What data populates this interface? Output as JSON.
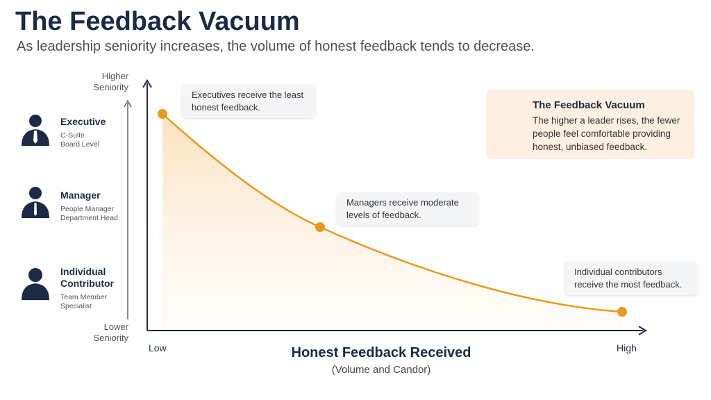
{
  "header": {
    "title": "The Feedback Vacuum",
    "subtitle": "As leadership seniority increases, the volume of honest feedback tends to decrease."
  },
  "y_axis": {
    "top_label": [
      "Higher",
      "Seniority"
    ],
    "bottom_label": [
      "Lower",
      "Seniority"
    ]
  },
  "levels": [
    {
      "title": "Executive",
      "details": [
        "C-Suite",
        "Board Level"
      ]
    },
    {
      "title": "Manager",
      "details": [
        "People Manager",
        "Department Head"
      ]
    },
    {
      "title": "Individual Contributor",
      "details": [
        "Team Member",
        "Specialist"
      ]
    }
  ],
  "x_axis": {
    "low": "Low",
    "high": "High",
    "title": "Honest Feedback Received",
    "subtitle": "(Volume and Candor)"
  },
  "callouts": [
    {
      "text": "Executives receive the least honest feedback."
    },
    {
      "text": "Managers receive moderate levels of feedback."
    },
    {
      "text": "Individual contributors receive the most feedback."
    }
  ],
  "note": {
    "title": "The Feedback Vacuum",
    "text": "The higher a leader rises, the fewer people feel comfortable providing honest, unbiased feedback."
  }
}
